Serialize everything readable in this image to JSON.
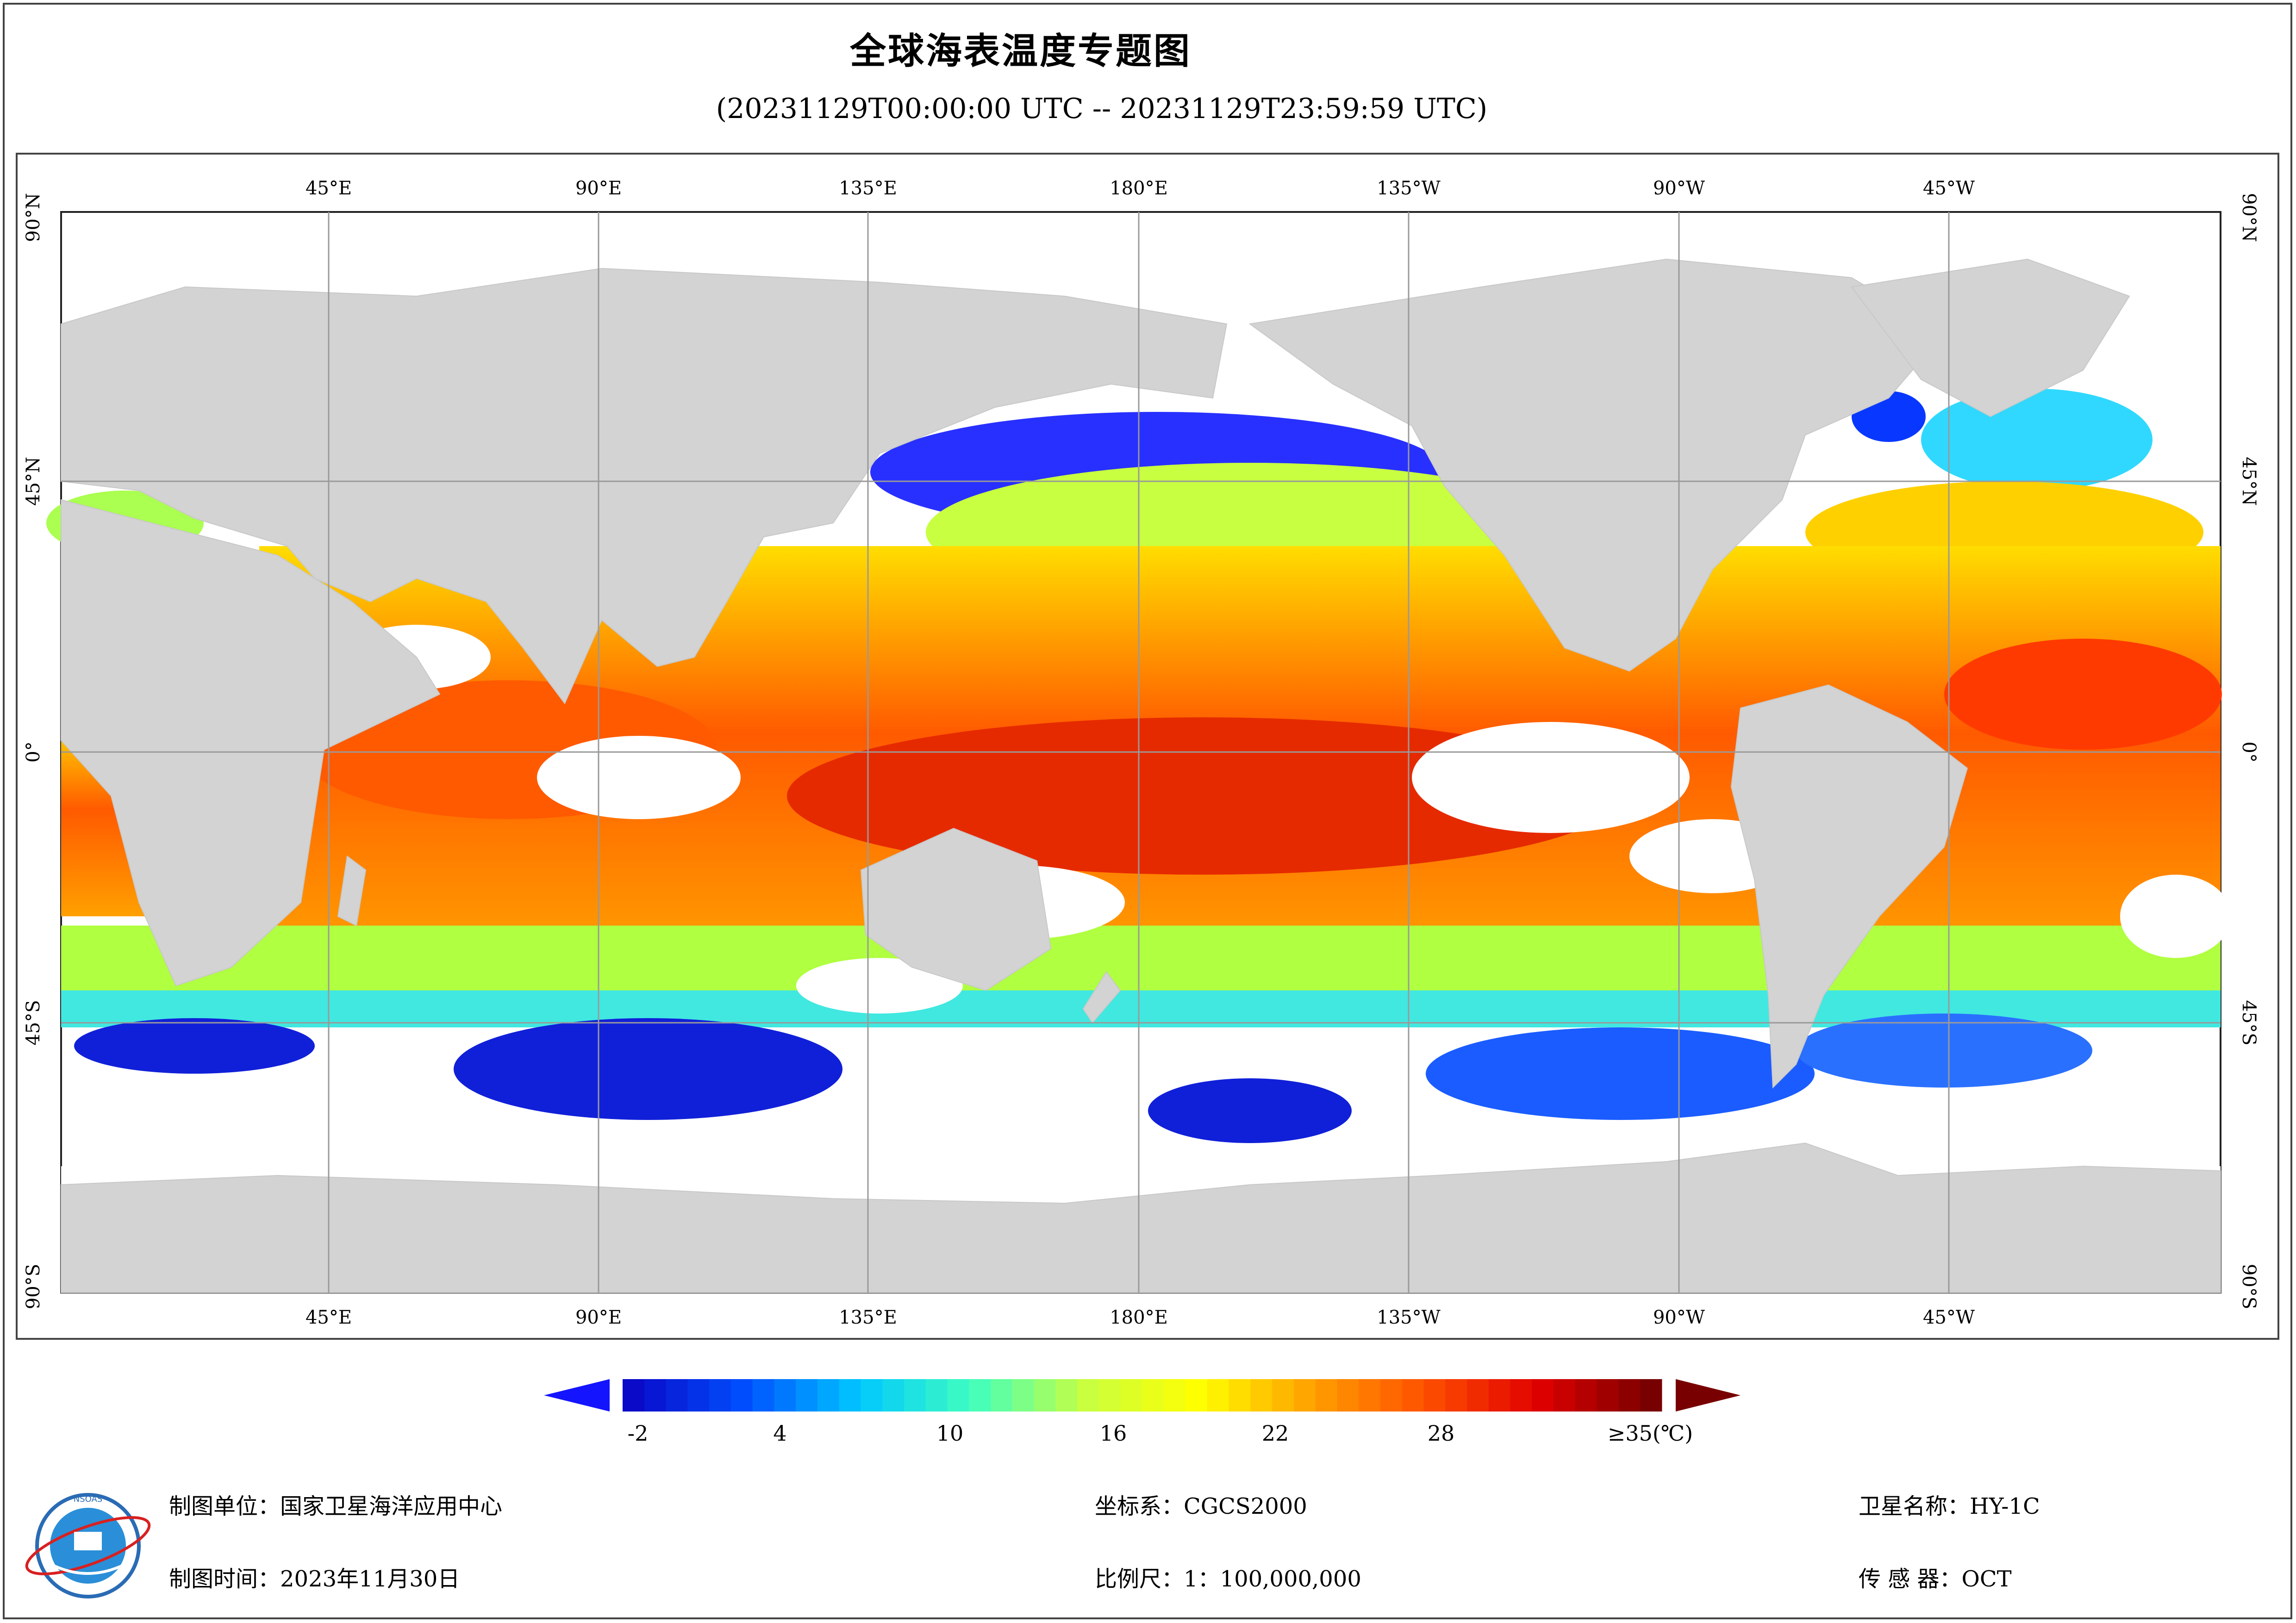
{
  "title": "全球海表温度专题图",
  "subtitle": "(20231129T00:00:00 UTC -- 20231129T23:59:59 UTC)",
  "map": {
    "top_longitude_labels": [
      "45°E",
      "90°E",
      "135°E",
      "180°E",
      "135°W",
      "90°W",
      "45°W"
    ],
    "bottom_longitude_labels": [
      "45°E",
      "90°E",
      "135°E",
      "180°E",
      "135°W",
      "90°W",
      "45°W"
    ],
    "latitude_labels": [
      "90°N",
      "45°N",
      "0°",
      "45°S",
      "90°S"
    ],
    "colors": {
      "land": "#d3d3d3",
      "cloud_no_data": "#ffffff",
      "grid": "#9a9a9a"
    }
  },
  "colorbar": {
    "tick_labels": [
      "-2",
      "4",
      "10",
      "16",
      "22",
      "28",
      "≥35(℃)"
    ],
    "min": -2,
    "max": 35,
    "units": "℃",
    "colors": [
      "#0a0ac8",
      "#0050ff",
      "#00c8ff",
      "#40ffc0",
      "#c8ff40",
      "#ffff00",
      "#ffa000",
      "#ff5000",
      "#e00000",
      "#780000"
    ]
  },
  "footer": {
    "unit": "制图单位：国家卫星海洋应用中心",
    "date": "制图时间：2023年11月30日",
    "crs": "坐标系：CGCS2000",
    "scale": "比例尺：1：100,000,000",
    "satellite": "卫星名称：HY-1C",
    "sensor": "传 感 器：OCT"
  },
  "logo": {
    "text": "NATIONAL SATELLITE OCEAN APPLICATION SERVICE",
    "icon": "nsoas-logo-icon"
  }
}
